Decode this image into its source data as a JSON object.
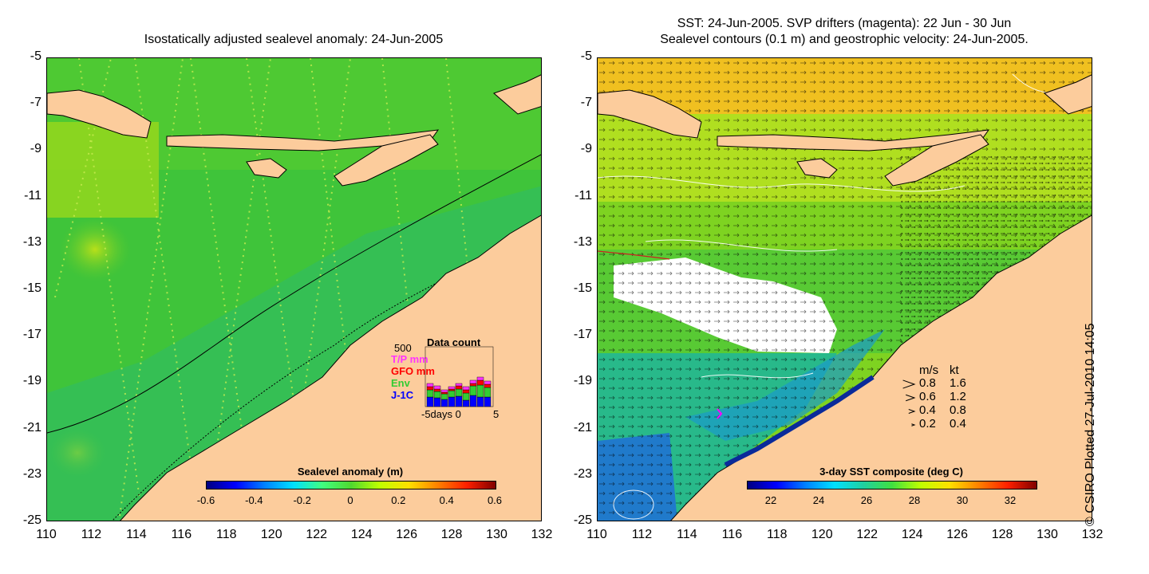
{
  "left_panel": {
    "title": "Isostatically adjusted sealevel anomaly: 24-Jun-2005",
    "y_ticks": [
      "-5",
      "-7",
      "-9",
      "-11",
      "-13",
      "-15",
      "-17",
      "-19",
      "-21",
      "-23",
      "-25"
    ],
    "x_ticks": [
      "110",
      "112",
      "114",
      "116",
      "118",
      "120",
      "122",
      "124",
      "126",
      "128",
      "130",
      "132"
    ],
    "colorbar": {
      "title": "Sealevel anomaly (m)",
      "ticks": [
        "-0.6",
        "-0.4",
        "-0.2",
        "0",
        "0.2",
        "0.4",
        "0.6"
      ]
    },
    "data_count": {
      "title": "Data count",
      "max_label": "500",
      "legend": [
        {
          "label": "T/P mm",
          "color": "#ff33ff"
        },
        {
          "label": "GFO mm",
          "color": "#ff0000"
        },
        {
          "label": "Env",
          "color": "#33cc33"
        },
        {
          "label": "J-1C",
          "color": "#0000ff"
        }
      ],
      "x_label": "-5days 0",
      "x_label_end": "5",
      "bars": [
        {
          "day": -5,
          "jason": 120,
          "env": 90,
          "gfo": 40,
          "tp": 40
        },
        {
          "day": -4,
          "jason": 110,
          "env": 80,
          "gfo": 30,
          "tp": 40
        },
        {
          "day": -3,
          "jason": 90,
          "env": 70,
          "gfo": 20,
          "tp": 30
        },
        {
          "day": -2,
          "jason": 120,
          "env": 80,
          "gfo": 20,
          "tp": 30
        },
        {
          "day": -1,
          "jason": 130,
          "env": 90,
          "gfo": 40,
          "tp": 30
        },
        {
          "day": 0,
          "jason": 80,
          "env": 90,
          "gfo": 40,
          "tp": 40
        },
        {
          "day": 1,
          "jason": 140,
          "env": 120,
          "gfo": 30,
          "tp": 40
        },
        {
          "day": 2,
          "jason": 120,
          "env": 150,
          "gfo": 60,
          "tp": 40
        },
        {
          "day": 3,
          "jason": 120,
          "env": 120,
          "gfo": 40,
          "tp": 40
        }
      ]
    }
  },
  "right_panel": {
    "title_line1": "SST: 24-Jun-2005. SVP drifters (magenta): 22 Jun - 30 Jun",
    "title_line2": "Sealevel contours (0.1 m) and geostrophic velocity: 24-Jun-2005.",
    "y_ticks": [
      "-5",
      "-7",
      "-9",
      "-11",
      "-13",
      "-15",
      "-17",
      "-19",
      "-21",
      "-23",
      "-25"
    ],
    "x_ticks": [
      "110",
      "112",
      "114",
      "116",
      "118",
      "120",
      "122",
      "124",
      "126",
      "128",
      "130",
      "132"
    ],
    "colorbar": {
      "title": "3-day SST composite (deg C)",
      "ticks": [
        "22",
        "24",
        "26",
        "28",
        "30",
        "32"
      ]
    },
    "velocity_legend": {
      "header_ms": "m/s",
      "header_kt": "kt",
      "rows": [
        {
          "ms": "0.8",
          "kt": "1.6"
        },
        {
          "ms": "0.6",
          "kt": "1.2"
        },
        {
          "ms": "0.4",
          "kt": "0.8"
        },
        {
          "ms": "0.2",
          "kt": "0.4"
        }
      ]
    }
  },
  "credit": "© CSIRO Plotted 27-Jul-2010 14:05",
  "colors": {
    "land": "#fccc9c",
    "ocean_green": "#2fc83c",
    "ocean_light": "#7ed321",
    "ocean_teal": "#1fb87a",
    "sst_warm": "#f0b418",
    "sst_cool": "#1e5fd6",
    "cloud": "#ffffff"
  }
}
